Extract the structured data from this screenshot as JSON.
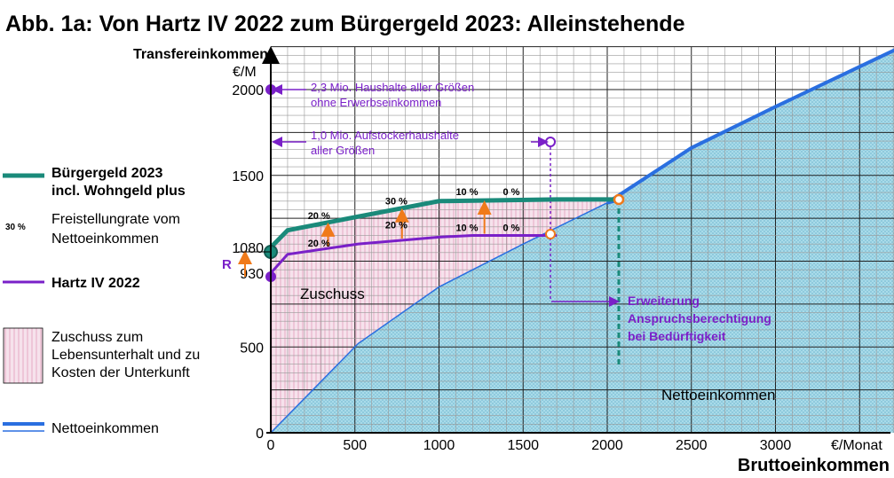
{
  "chart_data": {
    "type": "line",
    "title": "Abb. 1a: Von  Hartz IV  2022  zum  Bürgergeld  2023:   Alleinstehende",
    "xlabel": "Bruttoeinkommen",
    "x_unit": "€/Monat",
    "ylabel": "Transfereinkommen",
    "y_unit": "€/M",
    "xlim": [
      0,
      3750
    ],
    "ylim": [
      0,
      2250
    ],
    "x_ticks": [
      "0",
      "500",
      "1000",
      "1500",
      "2000",
      "2500",
      "3000"
    ],
    "y_ticks": [
      "0",
      "500",
      "930",
      "1080",
      "1500",
      "2000"
    ],
    "grid": true,
    "legend": {
      "position": "left",
      "buergergeld": [
        "Bürgergeld 2023",
        "incl. Wohngeld plus"
      ],
      "rate_sample": "30 %",
      "rate_text": [
        "Freistellungrate vom",
        "Nettoeinkommen"
      ],
      "hartz": "Hartz IV  2022",
      "zuschuss": [
        "Zuschuss zum",
        "Lebensunterhalt und zu",
        "Kosten der Unterkunft"
      ],
      "netto": "Nettoeinkommen"
    },
    "series": [
      {
        "name": "Bürgergeld 2023 incl. Wohngeld plus",
        "color": "#1a8a7a",
        "x": [
          0,
          100,
          520,
          1000,
          1700,
          2080
        ],
        "y": [
          1080,
          1180,
          1260,
          1350,
          1360,
          1360
        ]
      },
      {
        "name": "Hartz IV  2022",
        "color": "#7a20c8",
        "x": [
          0,
          100,
          520,
          1000,
          1200,
          1700
        ],
        "y": [
          930,
          1040,
          1100,
          1140,
          1150,
          1150
        ]
      },
      {
        "name": "Nettoeinkommen",
        "color": "#2a6fe0",
        "x": [
          0,
          520,
          1000,
          1500,
          2000,
          2500,
          3000,
          3750
        ],
        "y": [
          0,
          520,
          850,
          1100,
          1340,
          1660,
          1900,
          2250
        ]
      }
    ],
    "rates": [
      {
        "label": "20 %",
        "series": "Bürgergeld 2023 incl. Wohngeld plus",
        "x": 220,
        "y": 1245
      },
      {
        "label": "30 %",
        "series": "Bürgergeld 2023 incl. Wohngeld plus",
        "x": 680,
        "y": 1330
      },
      {
        "label": "10 %",
        "series": "Bürgergeld 2023 incl. Wohngeld plus",
        "x": 1100,
        "y": 1385
      },
      {
        "label": "0 %",
        "series": "Bürgergeld 2023 incl. Wohngeld plus",
        "x": 1380,
        "y": 1385
      },
      {
        "label": "20 %",
        "series": "Hartz IV  2022",
        "x": 220,
        "y": 1085
      },
      {
        "label": "20 %",
        "series": "Hartz IV  2022",
        "x": 680,
        "y": 1190
      },
      {
        "label": "10 %",
        "series": "Hartz IV  2022",
        "x": 1100,
        "y": 1175
      },
      {
        "label": "0 %",
        "series": "Hartz IV  2022",
        "x": 1380,
        "y": 1175
      }
    ],
    "annotations": {
      "haushalte_1": "2,3 Mio. Haushalte aller Größen",
      "haushalte_2": "ohne Erwerbseinkommen",
      "aufstocker_1": "1,0 Mio. Aufstockerhaushalte",
      "aufstocker_2": "aller Größen",
      "erweiterung_1": "Erweiterung",
      "erweiterung_2": "Anspruchsberechtigung",
      "erweiterung_3": "bei Bedürftigkeit",
      "zuschuss": "Zuschuss",
      "nettoeinkommen": "Nettoeinkommen",
      "r_label": "R"
    },
    "colors": {
      "buergergeld": "#1a8a7a",
      "hartz": "#7a20c8",
      "netto": "#2a6fe0",
      "netto_fill": "#a8dcea",
      "zuschuss_fill": "#f2d6e4",
      "arrow_orange": "#f07a1a",
      "marker_orange": "#f07a1a"
    }
  }
}
